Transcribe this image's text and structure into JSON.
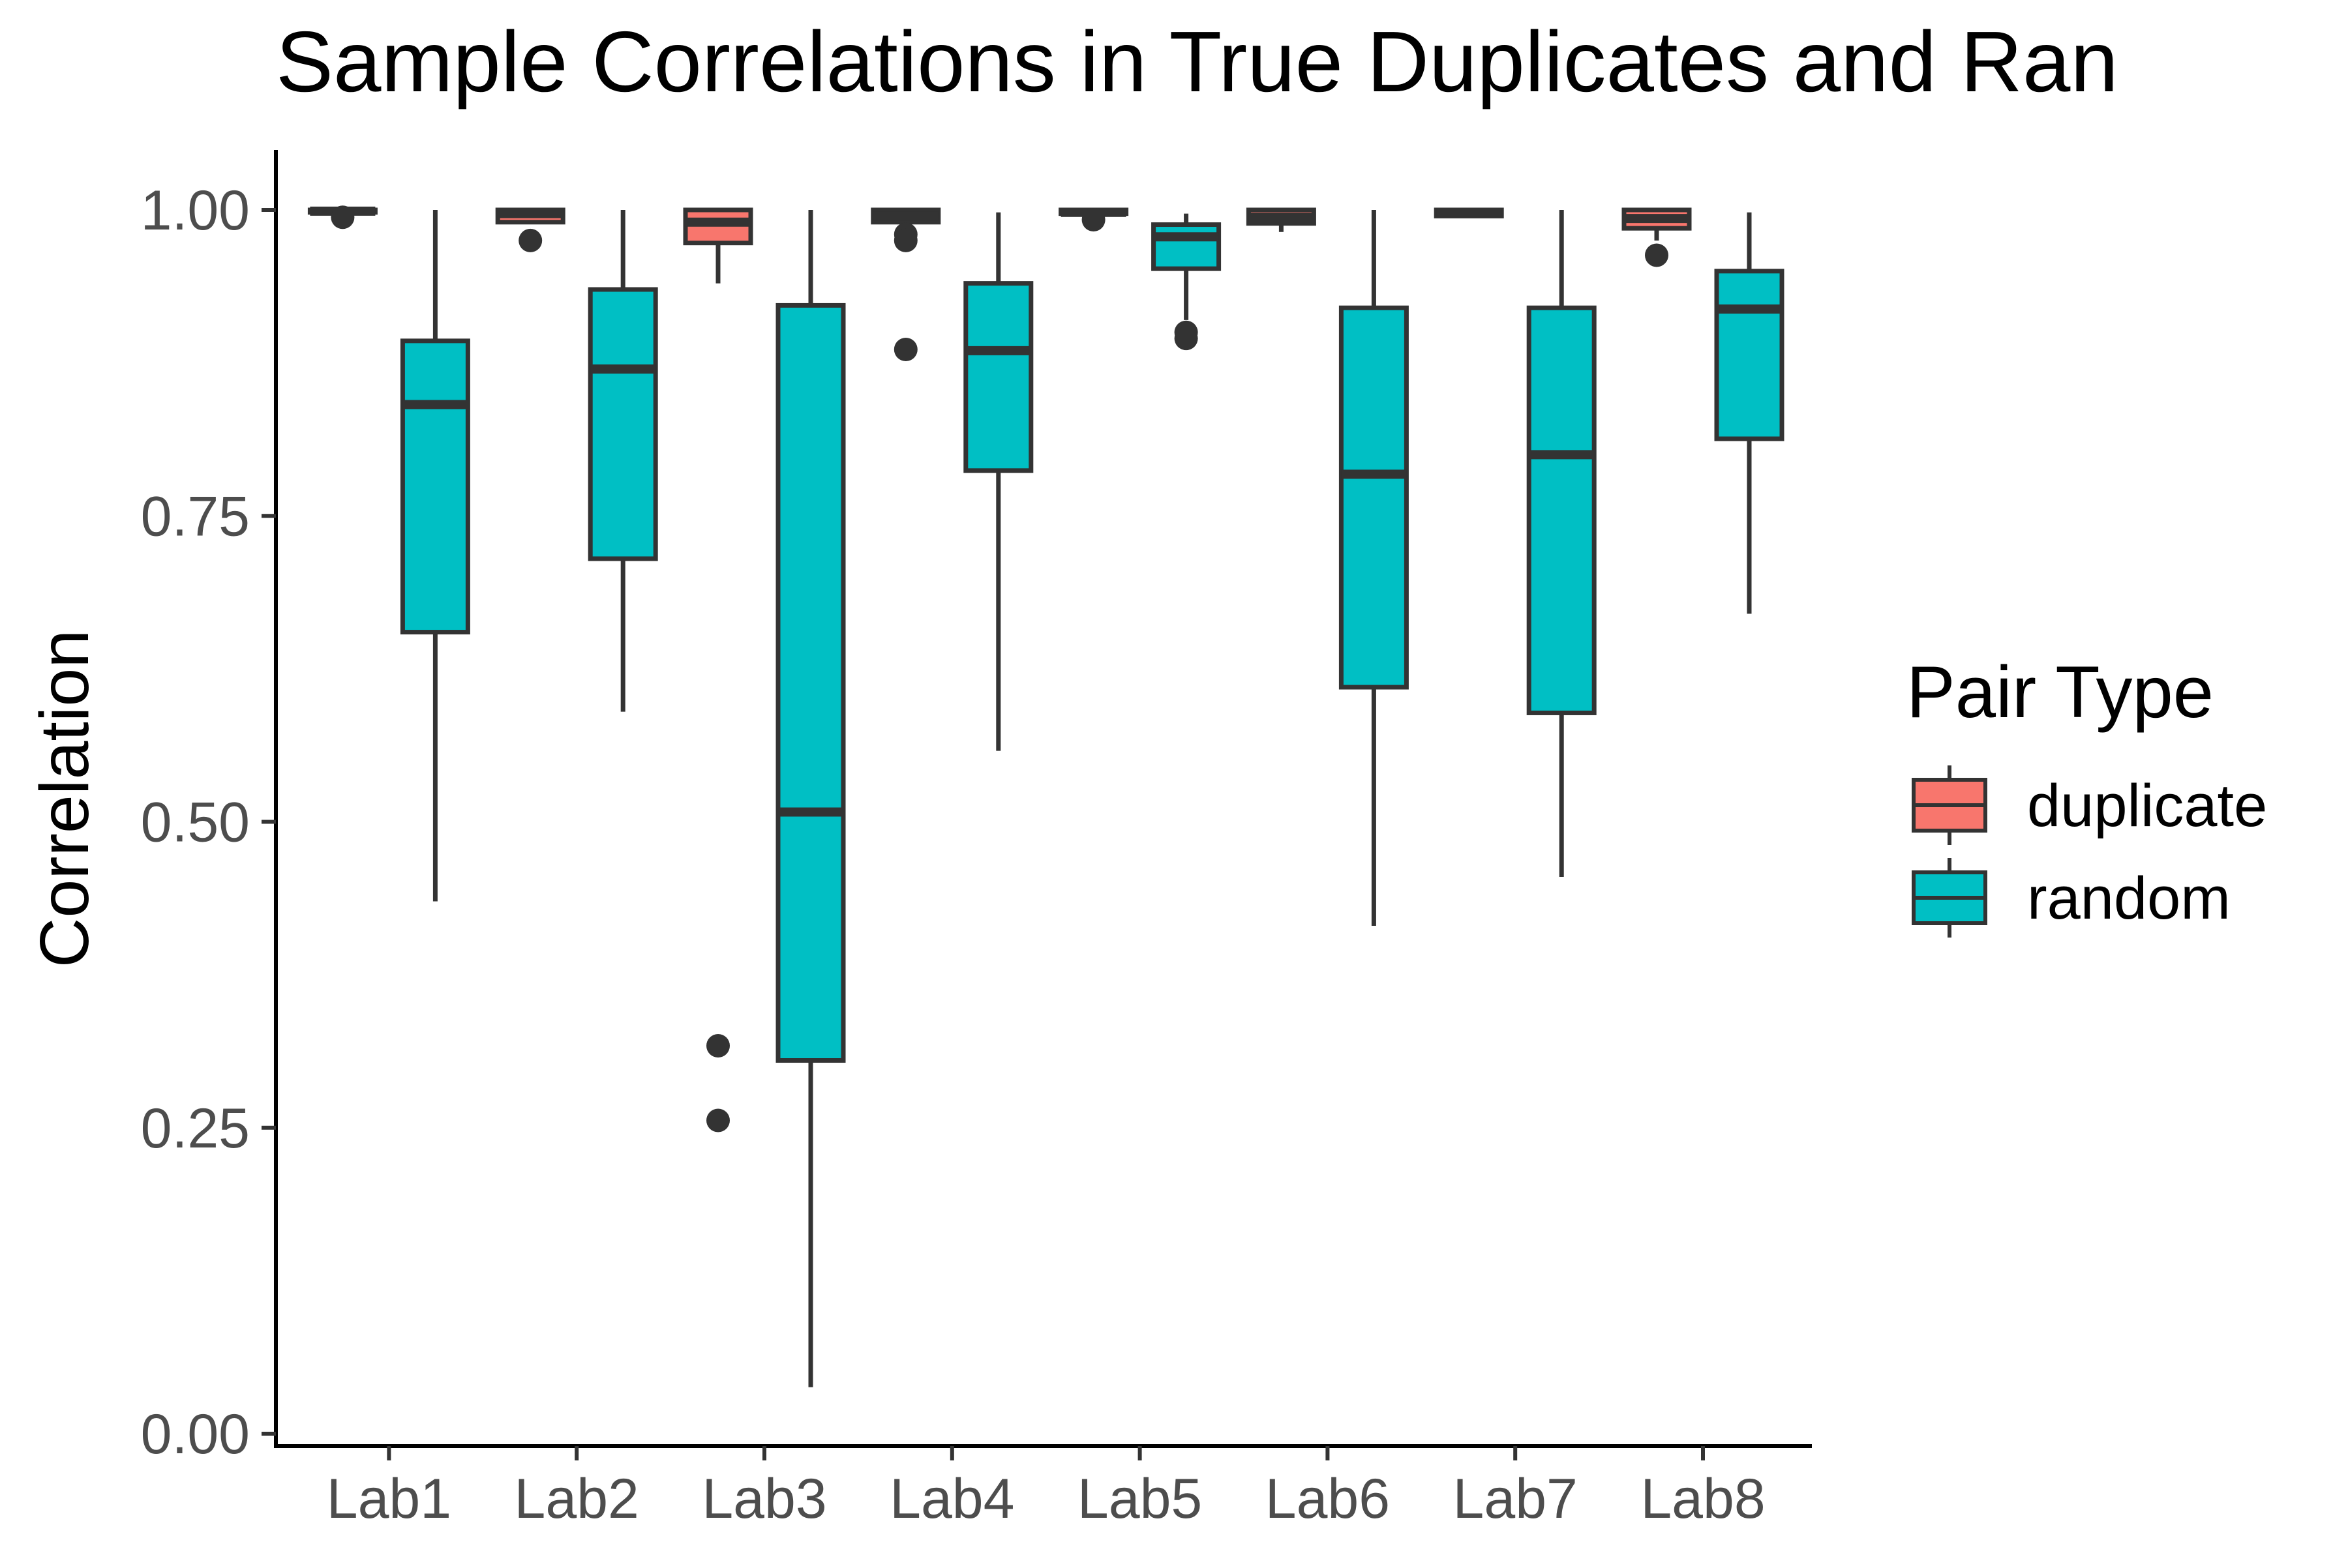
{
  "chart_data": {
    "type": "boxplot",
    "title": "Sample Correlations in True Duplicates and Ran",
    "xlabel": "",
    "ylabel": "Correlation",
    "ylim": [
      0,
      1.0
    ],
    "y_ticks": [
      "0.00",
      "0.25",
      "0.50",
      "0.75",
      "1.00"
    ],
    "y_tick_values": [
      0,
      0.25,
      0.5,
      0.75,
      1.0
    ],
    "categories": [
      "Lab1",
      "Lab2",
      "Lab3",
      "Lab4",
      "Lab5",
      "Lab6",
      "Lab7",
      "Lab8"
    ],
    "legend": {
      "title": "Pair Type",
      "position": "right",
      "entries": [
        "duplicate",
        "random"
      ]
    },
    "colors": {
      "duplicate": "#F8766D",
      "random": "#00BFC4",
      "outline": "#333333"
    },
    "series": [
      {
        "name": "duplicate",
        "boxes": [
          {
            "category": "Lab1",
            "min": 0.998,
            "q1": 0.998,
            "median": 0.999,
            "q3": 1.0,
            "max": 1.0,
            "outliers": [
              0.994
            ]
          },
          {
            "category": "Lab2",
            "min": 0.99,
            "q1": 0.99,
            "median": 0.997,
            "q3": 1.0,
            "max": 1.0,
            "outliers": [
              0.975
            ]
          },
          {
            "category": "Lab3",
            "min": 0.94,
            "q1": 0.973,
            "median": 0.99,
            "q3": 1.0,
            "max": 1.0,
            "outliers": [
              0.317,
              0.256
            ]
          },
          {
            "category": "Lab4",
            "min": 0.99,
            "q1": 0.99,
            "median": 0.995,
            "q3": 1.0,
            "max": 1.0,
            "outliers": [
              0.98,
              0.975,
              0.886
            ]
          },
          {
            "category": "Lab5",
            "min": 0.997,
            "q1": 0.997,
            "median": 0.998,
            "q3": 1.0,
            "max": 1.0,
            "outliers": [
              0.992
            ]
          },
          {
            "category": "Lab6",
            "min": 0.982,
            "q1": 0.989,
            "median": 0.994,
            "q3": 1.0,
            "max": 1.0,
            "outliers": []
          },
          {
            "category": "Lab7",
            "min": 0.994,
            "q1": 0.995,
            "median": 0.998,
            "q3": 1.0,
            "max": 1.0,
            "outliers": []
          },
          {
            "category": "Lab8",
            "min": 0.975,
            "q1": 0.985,
            "median": 0.993,
            "q3": 1.0,
            "max": 1.0,
            "outliers": [
              0.963
            ]
          }
        ]
      },
      {
        "name": "random",
        "boxes": [
          {
            "category": "Lab1",
            "min": 0.435,
            "q1": 0.655,
            "median": 0.841,
            "q3": 0.893,
            "max": 1.0,
            "outliers": []
          },
          {
            "category": "Lab2",
            "min": 0.59,
            "q1": 0.715,
            "median": 0.87,
            "q3": 0.935,
            "max": 1.0,
            "outliers": []
          },
          {
            "category": "Lab3",
            "min": 0.038,
            "q1": 0.305,
            "median": 0.508,
            "q3": 0.922,
            "max": 1.0,
            "outliers": []
          },
          {
            "category": "Lab4",
            "min": 0.558,
            "q1": 0.787,
            "median": 0.885,
            "q3": 0.94,
            "max": 0.998,
            "outliers": []
          },
          {
            "category": "Lab5",
            "min": 0.91,
            "q1": 0.952,
            "median": 0.978,
            "q3": 0.988,
            "max": 0.997,
            "outliers": [
              0.9,
              0.895
            ]
          },
          {
            "category": "Lab6",
            "min": 0.415,
            "q1": 0.61,
            "median": 0.784,
            "q3": 0.92,
            "max": 1.0,
            "outliers": []
          },
          {
            "category": "Lab7",
            "min": 0.455,
            "q1": 0.589,
            "median": 0.8,
            "q3": 0.92,
            "max": 1.0,
            "outliers": []
          },
          {
            "category": "Lab8",
            "min": 0.67,
            "q1": 0.813,
            "median": 0.919,
            "q3": 0.95,
            "max": 0.998,
            "outliers": []
          }
        ]
      }
    ],
    "grid": false
  }
}
